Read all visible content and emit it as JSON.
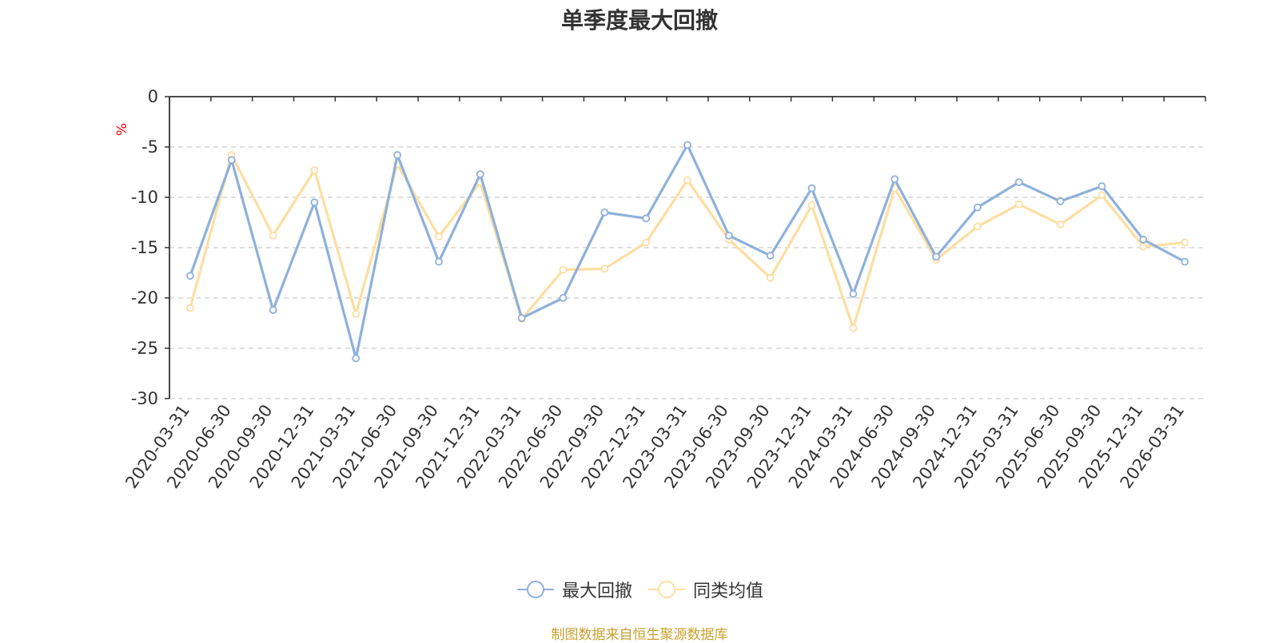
{
  "chart_data": {
    "type": "line",
    "title": "单季度最大回撤",
    "ylabel": "%",
    "ylim": [
      -30,
      0
    ],
    "yticks": [
      0,
      -5,
      -10,
      -15,
      -20,
      -25,
      -30
    ],
    "grid": true,
    "legend_position": "bottom",
    "categories": [
      "2020-03-31",
      "2020-06-30",
      "2020-09-30",
      "2020-12-31",
      "2021-03-31",
      "2021-06-30",
      "2021-09-30",
      "2021-12-31",
      "2022-03-31",
      "2022-06-30",
      "2022-09-30",
      "2022-12-31",
      "2023-03-31",
      "2023-06-30",
      "2023-09-30",
      "2023-12-31",
      "2024-03-31",
      "2024-06-30",
      "2024-09-30",
      "2024-12-31",
      "2025-03-31",
      "2025-06-30",
      "2025-09-30",
      "2025-12-31",
      "2026-03-31"
    ],
    "series": [
      {
        "name": "最大回撤",
        "color": "#8eb0dc",
        "values": [
          -17.8,
          -6.3,
          -21.2,
          -10.5,
          -26.0,
          -5.8,
          -16.4,
          -7.7,
          -22.0,
          -20.0,
          -11.5,
          -12.1,
          -4.8,
          -13.8,
          -15.8,
          -9.1,
          -19.6,
          -8.2,
          -15.9,
          -11.0,
          -8.5,
          -10.4,
          -8.9,
          -14.2,
          -16.4
        ]
      },
      {
        "name": "同类均值",
        "color": "#fddea0",
        "values": [
          -21.0,
          -5.8,
          -13.8,
          -7.3,
          -21.6,
          -6.7,
          -13.9,
          -8.5,
          -22.1,
          -17.2,
          -17.1,
          -14.5,
          -8.3,
          -14.2,
          -18.0,
          -10.8,
          -23.0,
          -9.1,
          -16.2,
          -12.9,
          -10.7,
          -12.7,
          -9.8,
          -14.9,
          -14.5
        ]
      }
    ]
  },
  "source_note": "制图数据来自恒生聚源数据库",
  "colors": {
    "axis": "#333333",
    "grid": "#cccccc",
    "ylabel": "#ff0000",
    "source": "#c8a030",
    "title": "#333333"
  }
}
